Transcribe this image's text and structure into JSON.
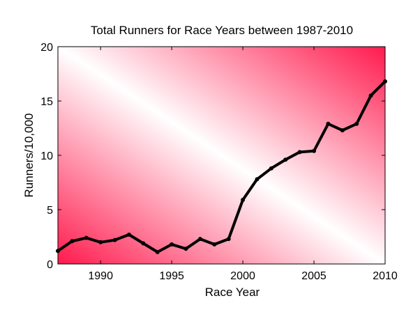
{
  "chart_data": {
    "type": "line",
    "title": "Total Runners for Race Years between 1987-2010",
    "xlabel": "Race Year",
    "ylabel": "Runners/10,000",
    "xlim": [
      1987,
      2010
    ],
    "ylim": [
      0,
      20
    ],
    "xticks": [
      1990,
      1995,
      2000,
      2005,
      2010
    ],
    "yticks": [
      0,
      5,
      10,
      15,
      20
    ],
    "grid": false,
    "legend": "none",
    "background_gradient": {
      "corner_color": "#ff1a4d",
      "center_color": "#ffffff"
    },
    "series": [
      {
        "color": "#000000",
        "x": [
          1987,
          1988,
          1989,
          1990,
          1991,
          1992,
          1993,
          1994,
          1995,
          1996,
          1997,
          1998,
          1999,
          2000,
          2001,
          2002,
          2003,
          2004,
          2005,
          2006,
          2007,
          2008,
          2009,
          2010
        ],
        "y": [
          1.2,
          2.1,
          2.4,
          2.0,
          2.2,
          2.7,
          1.9,
          1.1,
          1.8,
          1.4,
          2.3,
          1.8,
          2.3,
          5.9,
          7.8,
          8.8,
          9.6,
          10.3,
          10.4,
          12.9,
          12.3,
          12.9,
          15.5,
          16.8
        ]
      }
    ]
  }
}
